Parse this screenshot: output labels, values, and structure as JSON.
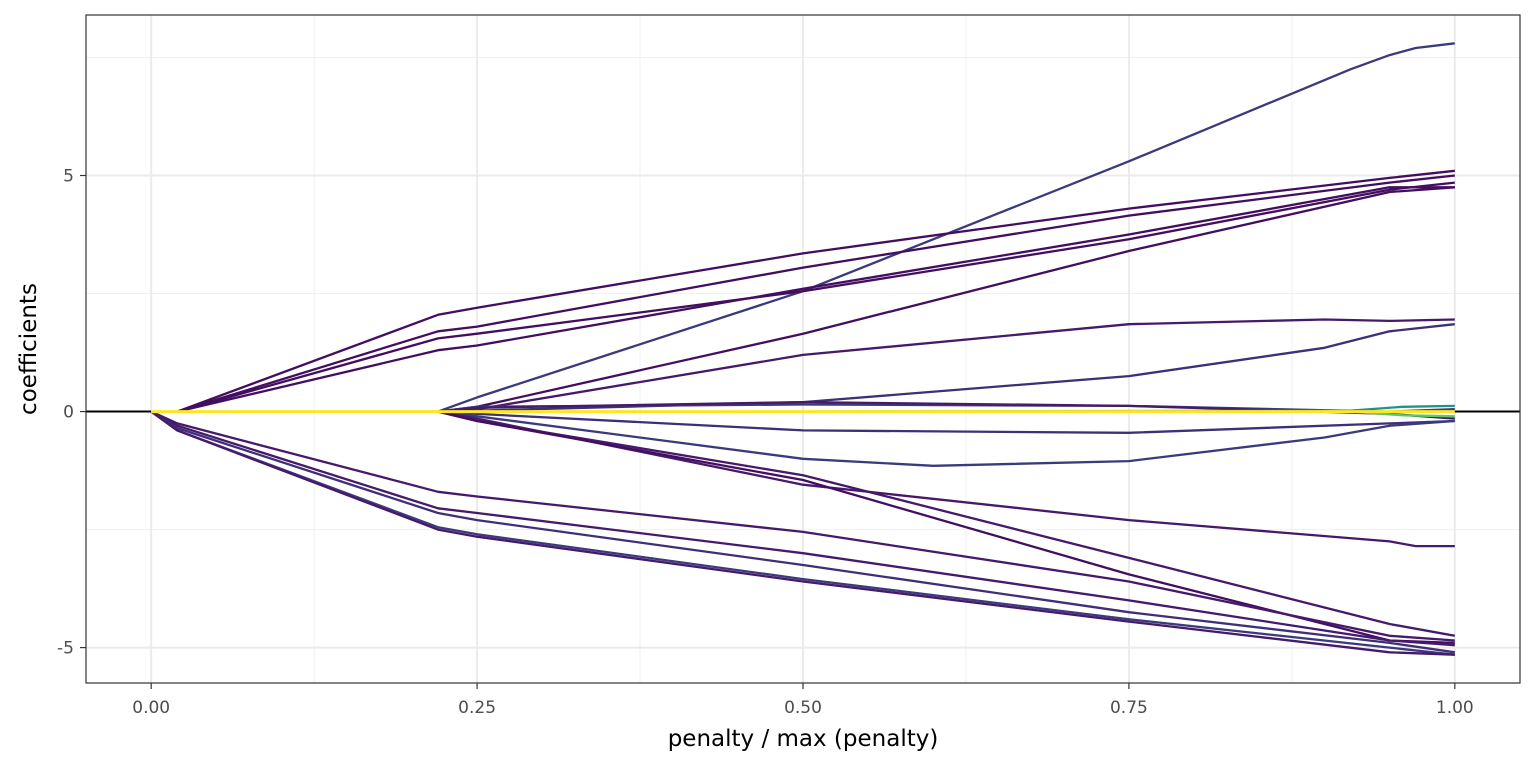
{
  "chart_data": {
    "type": "line",
    "title": "",
    "xlabel": "penalty / max (penalty)",
    "ylabel": "coefficients",
    "xlim": [
      -0.05,
      1.05
    ],
    "ylim": [
      -5.75,
      8.4
    ],
    "x_ticks": [
      {
        "value": 0.0,
        "label": "0.00"
      },
      {
        "value": 0.25,
        "label": "0.25"
      },
      {
        "value": 0.5,
        "label": "0.50"
      },
      {
        "value": 0.75,
        "label": "0.75"
      },
      {
        "value": 1.0,
        "label": "1.00"
      }
    ],
    "y_ticks": [
      {
        "value": -5,
        "label": "-5"
      },
      {
        "value": 0,
        "label": "0"
      },
      {
        "value": 5,
        "label": "5"
      }
    ],
    "grid": true,
    "zero_line": true,
    "legend": "none",
    "series": [
      {
        "color": "#3b3a7c",
        "x": [
          0,
          0.02,
          0.22,
          0.25,
          0.5,
          0.75,
          0.92,
          0.95,
          0.97,
          1.0
        ],
        "y": [
          0,
          0,
          0,
          0.3,
          2.55,
          5.3,
          7.25,
          7.55,
          7.7,
          7.8
        ]
      },
      {
        "color": "#440e60",
        "x": [
          0,
          0.02,
          0.22,
          0.25,
          0.5,
          0.75,
          0.95,
          1.0
        ],
        "y": [
          0,
          0,
          2.05,
          2.2,
          3.35,
          4.3,
          4.95,
          5.1
        ]
      },
      {
        "color": "#440e60",
        "x": [
          0,
          0.02,
          0.22,
          0.25,
          0.5,
          0.75,
          0.95,
          1.0
        ],
        "y": [
          0,
          0,
          1.7,
          1.8,
          3.05,
          4.15,
          4.85,
          5.0
        ]
      },
      {
        "color": "#440e60",
        "x": [
          0,
          0.02,
          0.22,
          0.25,
          0.5,
          0.75,
          0.95,
          1.0
        ],
        "y": [
          0,
          0,
          1.55,
          1.65,
          2.55,
          3.65,
          4.7,
          4.85
        ]
      },
      {
        "color": "#440e60",
        "x": [
          0,
          0.02,
          0.22,
          0.25,
          0.5,
          0.75,
          0.95,
          1.0
        ],
        "y": [
          0,
          0,
          1.3,
          1.4,
          2.6,
          3.75,
          4.75,
          4.75
        ]
      },
      {
        "color": "#440e60",
        "x": [
          0,
          0.02,
          0.22,
          0.25,
          0.5,
          0.75,
          0.95,
          1.0
        ],
        "y": [
          0,
          0,
          0,
          0.1,
          1.65,
          3.4,
          4.65,
          4.75
        ]
      },
      {
        "color": "#46196b",
        "x": [
          0,
          0.02,
          0.22,
          0.25,
          0.5,
          0.75,
          0.9,
          0.95,
          1.0
        ],
        "y": [
          0,
          0,
          0,
          0.05,
          1.2,
          1.85,
          1.95,
          1.92,
          1.95
        ]
      },
      {
        "color": "#3f2f77",
        "x": [
          0,
          0.02,
          0.22,
          0.25,
          0.5,
          0.75,
          0.9,
          0.95,
          1.0
        ],
        "y": [
          0,
          0,
          0,
          0.02,
          0.2,
          0.75,
          1.35,
          1.7,
          1.85
        ]
      },
      {
        "color": "#3b3a7c",
        "x": [
          0,
          0.02,
          0.22,
          0.25,
          0.5,
          0.75,
          0.95,
          1.0
        ],
        "y": [
          0,
          0,
          0,
          0.1,
          0.15,
          0.12,
          0.0,
          0.05
        ]
      },
      {
        "color": "#46196b",
        "x": [
          0,
          0.02,
          0.22,
          0.25,
          0.5,
          0.75,
          0.95,
          1.0
        ],
        "y": [
          0,
          0,
          0,
          0.08,
          0.2,
          0.12,
          -0.05,
          -0.15
        ]
      },
      {
        "color": "#3f2f77",
        "x": [
          0,
          0.02,
          0.22,
          0.25,
          0.5,
          0.75,
          0.95,
          1.0
        ],
        "y": [
          0,
          0,
          0,
          -0.05,
          -0.4,
          -0.45,
          -0.25,
          -0.2
        ]
      },
      {
        "color": "#3b3a7c",
        "x": [
          0,
          0.02,
          0.22,
          0.25,
          0.5,
          0.6,
          0.75,
          0.9,
          0.95,
          1.0
        ],
        "y": [
          0,
          0,
          0,
          -0.1,
          -1.0,
          -1.15,
          -1.05,
          -0.55,
          -0.3,
          -0.2
        ]
      },
      {
        "color": "#46196b",
        "x": [
          0,
          0.02,
          0.22,
          0.25,
          0.5,
          0.75,
          0.95,
          0.97,
          1.0
        ],
        "y": [
          0,
          0,
          0,
          -0.15,
          -1.55,
          -2.3,
          -2.75,
          -2.85,
          -2.85
        ]
      },
      {
        "color": "#46196b",
        "x": [
          0,
          0.02,
          0.22,
          0.25,
          0.5,
          0.75,
          0.95,
          1.0
        ],
        "y": [
          0,
          0,
          0,
          -0.2,
          -1.35,
          -3.1,
          -4.5,
          -4.75
        ]
      },
      {
        "color": "#440e60",
        "x": [
          0,
          0.02,
          0.22,
          0.25,
          0.5,
          0.75,
          0.95,
          1.0
        ],
        "y": [
          0,
          0,
          0,
          -0.2,
          -1.45,
          -3.45,
          -4.85,
          -4.9
        ]
      },
      {
        "color": "#46196b",
        "x": [
          0,
          0.02,
          0.22,
          0.25,
          0.5,
          0.75,
          0.95,
          1.0
        ],
        "y": [
          0,
          -0.25,
          -1.7,
          -1.8,
          -2.55,
          -3.6,
          -4.75,
          -4.85
        ]
      },
      {
        "color": "#46196b",
        "x": [
          0,
          0.02,
          0.22,
          0.25,
          0.5,
          0.75,
          0.95,
          1.0
        ],
        "y": [
          0,
          -0.3,
          -2.05,
          -2.15,
          -3.0,
          -4.0,
          -4.85,
          -4.95
        ]
      },
      {
        "color": "#3f2f77",
        "x": [
          0,
          0.02,
          0.22,
          0.25,
          0.5,
          0.75,
          0.95,
          1.0
        ],
        "y": [
          0,
          -0.35,
          -2.15,
          -2.3,
          -3.25,
          -4.25,
          -4.9,
          -5.1
        ]
      },
      {
        "color": "#3b3a7c",
        "x": [
          0,
          0.02,
          0.22,
          0.25,
          0.5,
          0.75,
          0.95,
          1.0
        ],
        "y": [
          0,
          -0.4,
          -2.45,
          -2.6,
          -3.55,
          -4.4,
          -5.0,
          -5.15
        ]
      },
      {
        "color": "#46196b",
        "x": [
          0,
          0.02,
          0.22,
          0.25,
          0.5,
          0.75,
          0.95,
          1.0
        ],
        "y": [
          0,
          -0.4,
          -2.5,
          -2.65,
          -3.6,
          -4.45,
          -5.1,
          -5.15
        ]
      },
      {
        "color": "#21918c",
        "x": [
          0,
          0.5,
          0.92,
          0.96,
          1.0
        ],
        "y": [
          0,
          0,
          0.02,
          0.1,
          0.12
        ]
      },
      {
        "color": "#5ec962",
        "x": [
          0,
          0.5,
          0.92,
          0.96,
          1.0
        ],
        "y": [
          0,
          0,
          0.0,
          -0.08,
          -0.1
        ]
      },
      {
        "color": "#fde725",
        "x": [
          0,
          1.0
        ],
        "y": [
          0,
          0
        ]
      }
    ]
  }
}
